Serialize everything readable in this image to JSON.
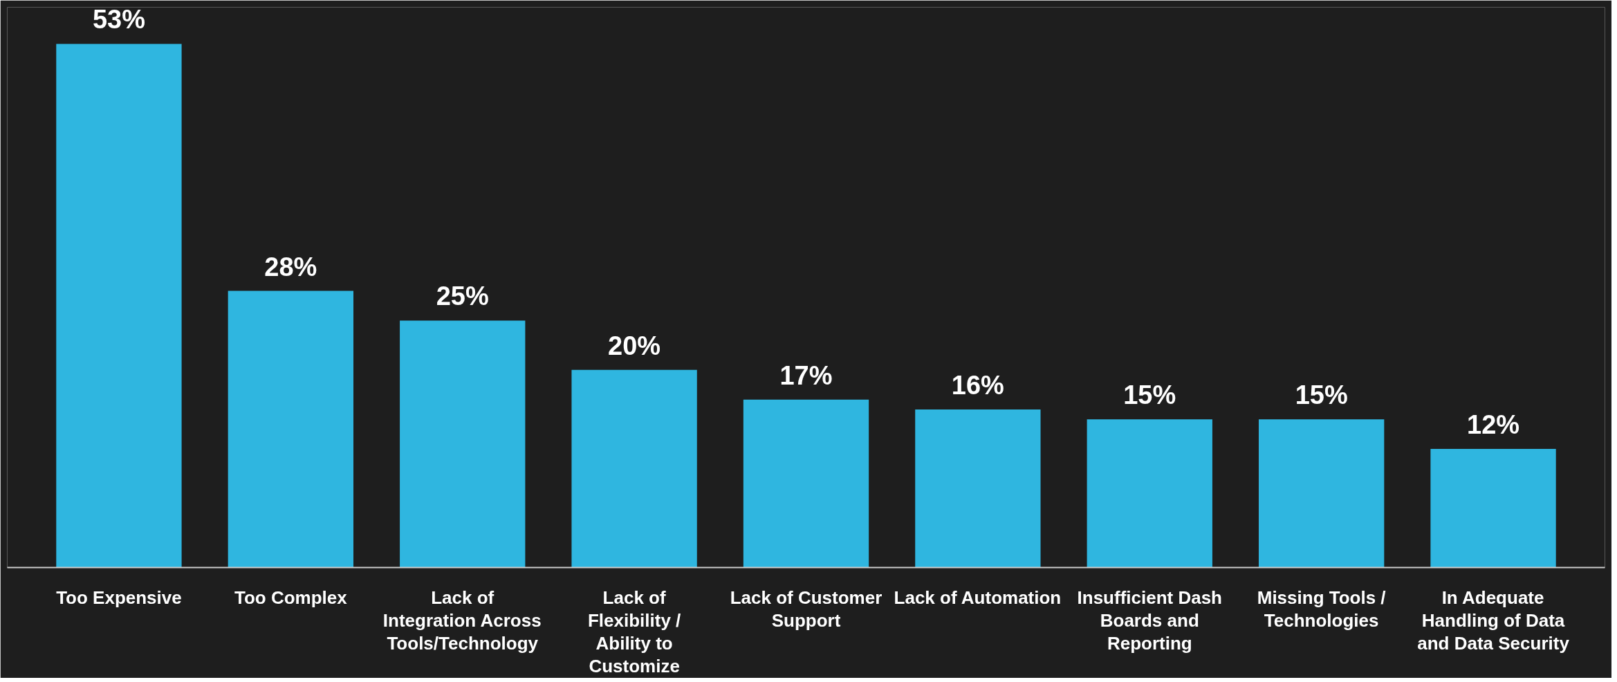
{
  "chart_data": {
    "type": "bar",
    "categories": [
      "Too Expensive",
      "Too Complex",
      "Lack of Integration Across Tools/Technology",
      "Lack of Flexibility / Ability to Customize",
      "Lack of Customer Support",
      "Lack of Automation",
      "Insufficient Dash Boards and Reporting",
      "Missing Tools / Technologies",
      "In Adequate Handling of Data and Data Security"
    ],
    "values": [
      53,
      28,
      25,
      20,
      17,
      16,
      15,
      15,
      12
    ],
    "value_labels": [
      "53%",
      "28%",
      "25%",
      "20%",
      "17%",
      "16%",
      "15%",
      "15%",
      "12%"
    ],
    "color": "#2fb6e0",
    "grid": false,
    "tick_labels": "x"
  }
}
